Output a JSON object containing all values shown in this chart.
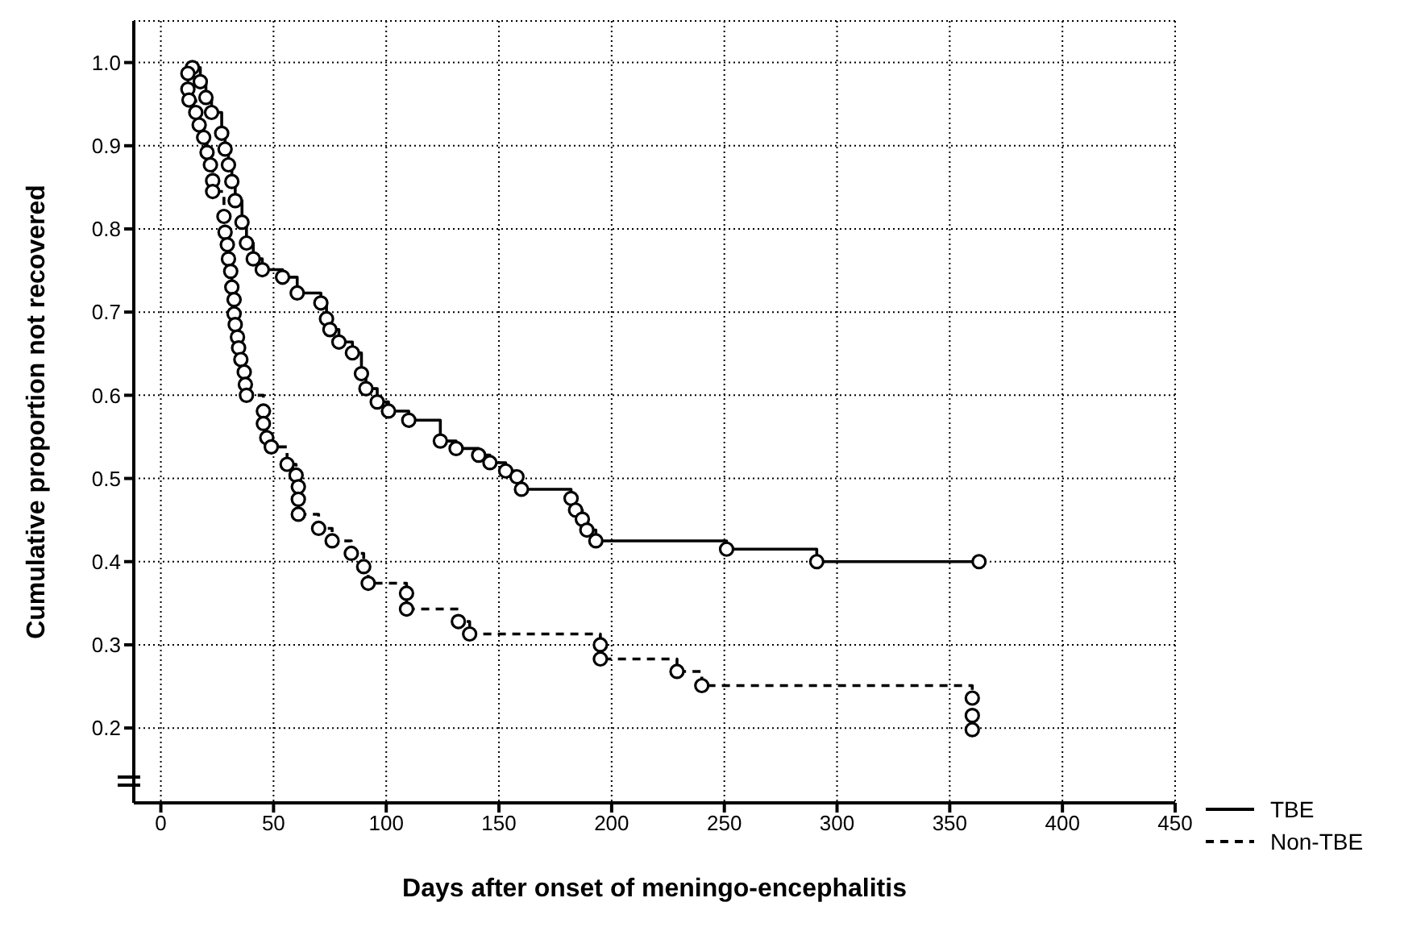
{
  "chart_data": {
    "type": "step",
    "xlabel": "Days after onset of meningo-encephalitis",
    "ylabel": "Cumulative proportion not recovered",
    "xlim": [
      -12,
      450
    ],
    "ylim": [
      0.11,
      1.05
    ],
    "xticks": [
      0,
      50,
      100,
      150,
      200,
      250,
      300,
      350,
      400,
      450
    ],
    "yticks": [
      {
        "value": 0.2,
        "label": "0.2"
      },
      {
        "value": 0.3,
        "label": "0.3"
      },
      {
        "value": 0.4,
        "label": "0.4"
      },
      {
        "value": 0.5,
        "label": "0.5"
      },
      {
        "value": 0.6,
        "label": "0.6"
      },
      {
        "value": 0.7,
        "label": "0.7"
      },
      {
        "value": 0.8,
        "label": "0.8"
      },
      {
        "value": 0.9,
        "label": "0.9"
      },
      {
        "value": 1,
        "label": "1.0"
      }
    ],
    "grid": true,
    "legend": "bottom right",
    "marker": "circle",
    "series": [
      {
        "name": "TBE",
        "color": "#000000",
        "line_style": "solid",
        "x": [
          14,
          17.5,
          20,
          22.5,
          27,
          28.5,
          30,
          31.5,
          33,
          36,
          38,
          41,
          45,
          54,
          60.5,
          71,
          73.5,
          75,
          79,
          85,
          89,
          91,
          96,
          101,
          110,
          124,
          131,
          141,
          146,
          153,
          158,
          160,
          182,
          184,
          187,
          189,
          193,
          251,
          291,
          363
        ],
        "values": [
          0.994,
          0.977,
          0.958,
          0.94,
          0.915,
          0.896,
          0.877,
          0.857,
          0.834,
          0.808,
          0.783,
          0.764,
          0.751,
          0.742,
          0.723,
          0.711,
          0.692,
          0.679,
          0.664,
          0.651,
          0.626,
          0.608,
          0.592,
          0.581,
          0.57,
          0.545,
          0.536,
          0.528,
          0.519,
          0.509,
          0.502,
          0.487,
          0.476,
          0.462,
          0.451,
          0.438,
          0.425,
          0.415,
          0.4,
          0.4
        ]
      },
      {
        "name": "Non-TBE",
        "color": "#000000",
        "line_style": "dashed",
        "x": [
          12,
          12,
          12.5,
          15.5,
          17,
          19,
          20.5,
          22,
          23,
          23,
          28,
          28.5,
          29.5,
          30,
          31,
          31.5,
          32.5,
          32.5,
          33,
          34,
          34.5,
          35.5,
          37,
          37.5,
          38,
          45.5,
          45.5,
          47,
          49,
          56,
          60,
          61,
          61,
          61,
          70,
          76,
          84.5,
          90,
          92,
          109,
          109,
          132,
          137,
          195,
          195,
          229,
          240,
          360,
          360,
          360
        ],
        "values": [
          0.987,
          0.968,
          0.955,
          0.94,
          0.925,
          0.91,
          0.892,
          0.877,
          0.858,
          0.845,
          0.815,
          0.796,
          0.781,
          0.764,
          0.749,
          0.73,
          0.715,
          0.698,
          0.685,
          0.67,
          0.657,
          0.643,
          0.628,
          0.613,
          0.6,
          0.581,
          0.566,
          0.549,
          0.538,
          0.517,
          0.504,
          0.49,
          0.475,
          0.457,
          0.44,
          0.425,
          0.41,
          0.394,
          0.374,
          0.362,
          0.343,
          0.328,
          0.313,
          0.3,
          0.283,
          0.268,
          0.251,
          0.236,
          0.215,
          0.198
        ]
      }
    ]
  }
}
